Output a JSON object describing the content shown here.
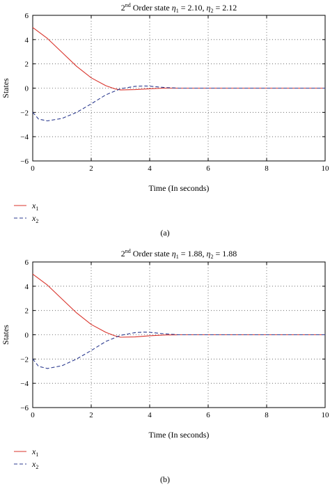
{
  "chart_data": [
    {
      "type": "line",
      "title": {
        "lead": "2",
        "sup": "nd",
        "main": " Order state ",
        "eta1": "η",
        "s1": "1",
        "v1": " = 2.10, ",
        "eta2": "η",
        "s2": "2",
        "v2": " = 2.12"
      },
      "xlabel": "Time (In seconds)",
      "ylabel": "States",
      "xlim": [
        0,
        10
      ],
      "ylim": [
        -6,
        6
      ],
      "xticks": [
        "0",
        "2",
        "4",
        "6",
        "8",
        "10"
      ],
      "yticks": [
        "6",
        "4",
        "2",
        "0",
        "−2",
        "−4",
        "−6"
      ],
      "grid": true,
      "legend": {
        "placement": "below-left",
        "entries": [
          {
            "sym": "x",
            "sub": "1"
          },
          {
            "sym": "x",
            "sub": "2"
          }
        ]
      },
      "caption": "(a)",
      "series": [
        {
          "color": "#d9332b",
          "dash": "solid",
          "x": [
            0,
            0.5,
            1,
            1.5,
            2,
            2.5,
            2.8,
            3,
            3.5,
            4,
            4.5,
            5,
            6,
            7,
            8,
            9,
            10
          ],
          "y": [
            5,
            4.1,
            2.95,
            1.8,
            0.85,
            0.2,
            -0.05,
            -0.15,
            -0.12,
            -0.05,
            0,
            0,
            0,
            0,
            0,
            0,
            0
          ]
        },
        {
          "color": "#2b3a8f",
          "dash": "dashed",
          "x": [
            0,
            0.2,
            0.5,
            1,
            1.5,
            2,
            2.5,
            3,
            3.5,
            3.8,
            4,
            4.5,
            5,
            6,
            7,
            8,
            9,
            10
          ],
          "y": [
            -2,
            -2.55,
            -2.7,
            -2.5,
            -2.0,
            -1.3,
            -0.55,
            -0.05,
            0.15,
            0.18,
            0.16,
            0.05,
            0,
            0,
            0,
            0,
            0,
            0
          ]
        }
      ]
    },
    {
      "type": "line",
      "title": {
        "lead": "2",
        "sup": "nd",
        "main": " Order state ",
        "eta1": "η",
        "s1": "1",
        "v1": " = 1.88, ",
        "eta2": "η",
        "s2": "2",
        "v2": " = 1.88"
      },
      "xlabel": "Time (In seconds)",
      "ylabel": "States",
      "xlim": [
        0,
        10
      ],
      "ylim": [
        -6,
        6
      ],
      "xticks": [
        "0",
        "2",
        "4",
        "6",
        "8",
        "10"
      ],
      "yticks": [
        "6",
        "4",
        "2",
        "0",
        "−2",
        "−4",
        "−6"
      ],
      "grid": true,
      "legend": {
        "placement": "below-left",
        "entries": [
          {
            "sym": "x",
            "sub": "1"
          },
          {
            "sym": "x",
            "sub": "2"
          }
        ]
      },
      "caption": "(b)",
      "series": [
        {
          "color": "#d9332b",
          "dash": "solid",
          "x": [
            0,
            0.5,
            1,
            1.5,
            2,
            2.5,
            2.8,
            3,
            3.5,
            4,
            4.5,
            5,
            6,
            7,
            8,
            9,
            10
          ],
          "y": [
            5,
            4.1,
            2.95,
            1.8,
            0.85,
            0.2,
            -0.08,
            -0.2,
            -0.18,
            -0.08,
            -0.02,
            0,
            0,
            0,
            0,
            0,
            0
          ]
        },
        {
          "color": "#2b3a8f",
          "dash": "dashed",
          "x": [
            0,
            0.2,
            0.5,
            1,
            1.5,
            2,
            2.5,
            3,
            3.5,
            3.8,
            4,
            4.5,
            5,
            6,
            7,
            8,
            9,
            10
          ],
          "y": [
            -2,
            -2.6,
            -2.78,
            -2.55,
            -2.0,
            -1.3,
            -0.55,
            -0.05,
            0.18,
            0.22,
            0.2,
            0.08,
            0,
            0,
            0,
            0,
            0,
            0
          ]
        }
      ]
    }
  ]
}
